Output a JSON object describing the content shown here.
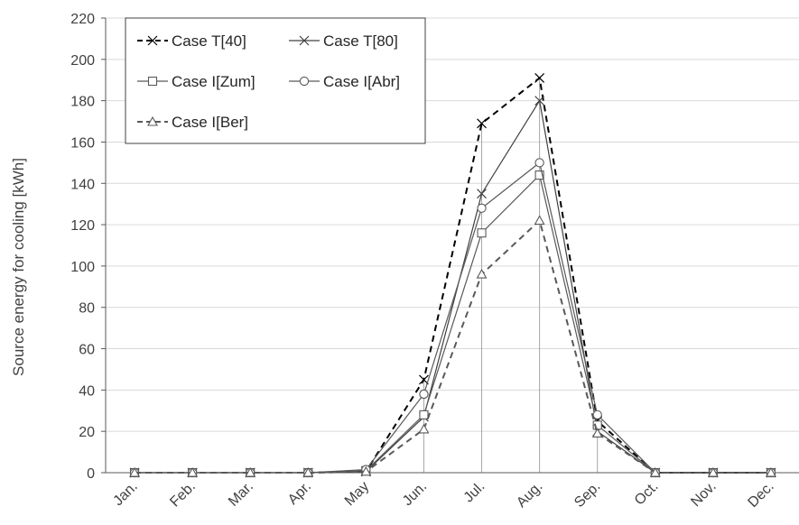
{
  "chart_data": {
    "type": "line",
    "title": "",
    "xlabel": "",
    "ylabel": "Source energy for cooling [kWh]",
    "ylim": [
      0,
      220
    ],
    "yticks": [
      0,
      20,
      40,
      60,
      80,
      100,
      120,
      140,
      160,
      180,
      200,
      220
    ],
    "categories": [
      "Jan.",
      "Feb.",
      "Mar.",
      "Apr.",
      "May",
      "Jun.",
      "Jul.",
      "Aug.",
      "Sep.",
      "Oct.",
      "Nov.",
      "Dec."
    ],
    "grid": "horizontal",
    "legend_position": "top-left",
    "series": [
      {
        "name": "Case T[40]",
        "values": [
          0,
          0,
          0,
          0,
          0.5,
          45,
          169,
          191,
          25,
          0,
          0,
          0
        ],
        "marker": "x",
        "dash": "dashed",
        "color": "#000000"
      },
      {
        "name": "Case T[80]",
        "values": [
          0,
          0,
          0,
          0,
          0.5,
          27,
          135,
          180,
          20,
          0,
          0,
          0
        ],
        "marker": "x",
        "dash": "solid",
        "color": "#404040"
      },
      {
        "name": "Case I[Zum]",
        "values": [
          0,
          0,
          0,
          0,
          1,
          28,
          116,
          144,
          23,
          0,
          0,
          0
        ],
        "marker": "square",
        "dash": "solid",
        "color": "#595959"
      },
      {
        "name": "Case I[Abr]",
        "values": [
          0,
          0,
          0,
          0,
          1.5,
          38,
          128,
          150,
          28,
          0,
          0,
          0
        ],
        "marker": "circle",
        "dash": "solid",
        "color": "#595959"
      },
      {
        "name": "Case I[Ber]",
        "values": [
          0,
          0,
          0,
          0,
          0.5,
          21,
          96,
          122,
          19,
          0,
          0,
          0
        ],
        "marker": "triangle",
        "dash": "dashed",
        "color": "#595959"
      }
    ]
  }
}
